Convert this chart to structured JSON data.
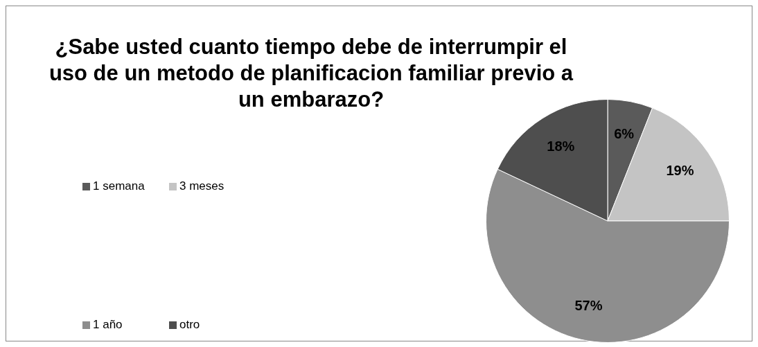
{
  "chart_data": {
    "type": "pie",
    "title": "¿Sabe usted cuanto tiempo debe de interrumpir el uso de un metodo de planificacion familiar previo a un embarazo?",
    "categories": [
      "1 semana",
      "3 meses",
      "1 año",
      "otro"
    ],
    "values": [
      6,
      19,
      57,
      18
    ],
    "colors": [
      "#5a5a5a",
      "#c4c4c4",
      "#8e8e8e",
      "#4e4e4e"
    ],
    "value_labels": [
      "6%",
      "19%",
      "57%",
      "18%"
    ],
    "legend": "left"
  }
}
